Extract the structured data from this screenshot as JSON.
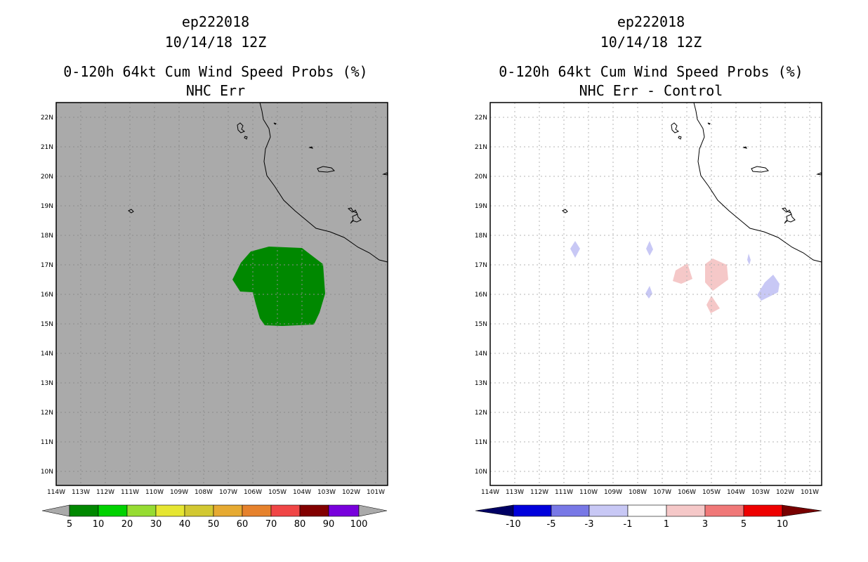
{
  "left": {
    "title_lines": [
      "ep222018",
      "10/14/18 12Z"
    ],
    "subtitle_lines": [
      "0-120h 64kt Cum Wind Speed Probs (%)",
      "NHC Err"
    ],
    "lat_labels": [
      "22N",
      "21N",
      "20N",
      "19N",
      "18N",
      "17N",
      "16N",
      "15N",
      "14N",
      "13N",
      "12N",
      "11N",
      "10N"
    ],
    "lon_labels": [
      "114W",
      "113W",
      "112W",
      "111W",
      "110W",
      "109W",
      "108W",
      "107W",
      "106W",
      "105W",
      "104W",
      "103W",
      "102W",
      "101W"
    ],
    "colorbar": {
      "labels": [
        "5",
        "10",
        "20",
        "30",
        "40",
        "50",
        "60",
        "70",
        "80",
        "90",
        "100"
      ],
      "colors": [
        "#aaaaaa",
        "#008800",
        "#00d200",
        "#96dc32",
        "#e6e632",
        "#d2c832",
        "#e6aa32",
        "#e6822d",
        "#f04646",
        "#820000",
        "#7800dc",
        "#aaaaaa"
      ]
    },
    "background_color": "#aaaaaa",
    "shading_color": "#008800"
  },
  "right": {
    "title_lines": [
      "ep222018",
      "10/14/18 12Z"
    ],
    "subtitle_lines": [
      "0-120h 64kt Cum Wind Speed Probs (%)",
      "NHC Err - Control"
    ],
    "lat_labels": [
      "22N",
      "21N",
      "20N",
      "19N",
      "18N",
      "17N",
      "16N",
      "15N",
      "14N",
      "13N",
      "12N",
      "11N",
      "10N"
    ],
    "lon_labels": [
      "114W",
      "113W",
      "112W",
      "111W",
      "110W",
      "109W",
      "108W",
      "107W",
      "106W",
      "105W",
      "104W",
      "103W",
      "102W",
      "101W"
    ],
    "colorbar": {
      "labels": [
        "-10",
        "-5",
        "-3",
        "-1",
        "1",
        "3",
        "5",
        "10"
      ],
      "colors": [
        "#000064",
        "#0000dc",
        "#7878e6",
        "#c8c8f5",
        "#ffffff",
        "#f5c8c8",
        "#f07878",
        "#ee0000",
        "#780000"
      ]
    },
    "positive_color": "#f5c8c8",
    "negative_color": "#c8c8f5"
  }
}
